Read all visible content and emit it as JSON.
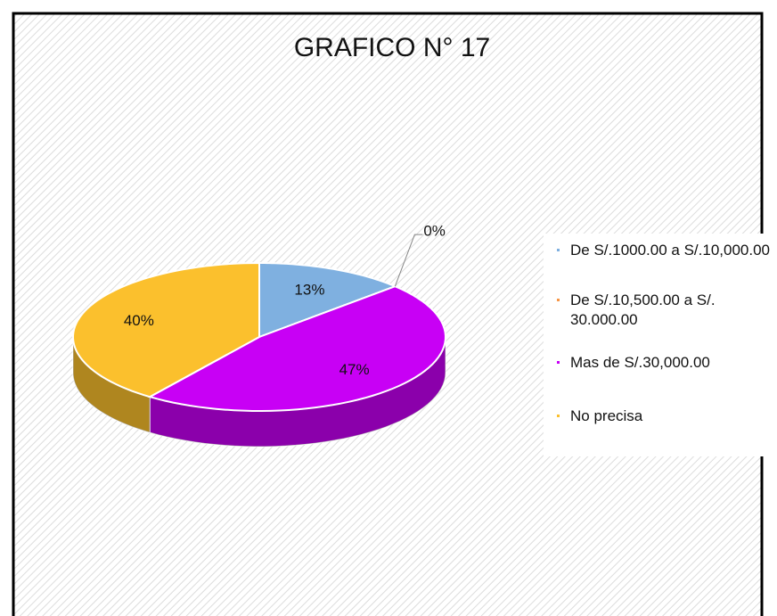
{
  "chart_data": {
    "type": "pie",
    "title": "GRAFICO N° 17",
    "categories": [
      "De S/.1000.00 a S/.10,000.00",
      "De S/.10,500.00 a S/. 30.000.00",
      "Mas de S/.30,000.00",
      "No precisa"
    ],
    "values": [
      13,
      0,
      47,
      40
    ],
    "value_labels": [
      "13%",
      "0%",
      "47%",
      "40%"
    ],
    "colors": [
      "#7fb0e0",
      "#f79646",
      "#c800f5",
      "#fbc02d"
    ],
    "legend": "right"
  }
}
